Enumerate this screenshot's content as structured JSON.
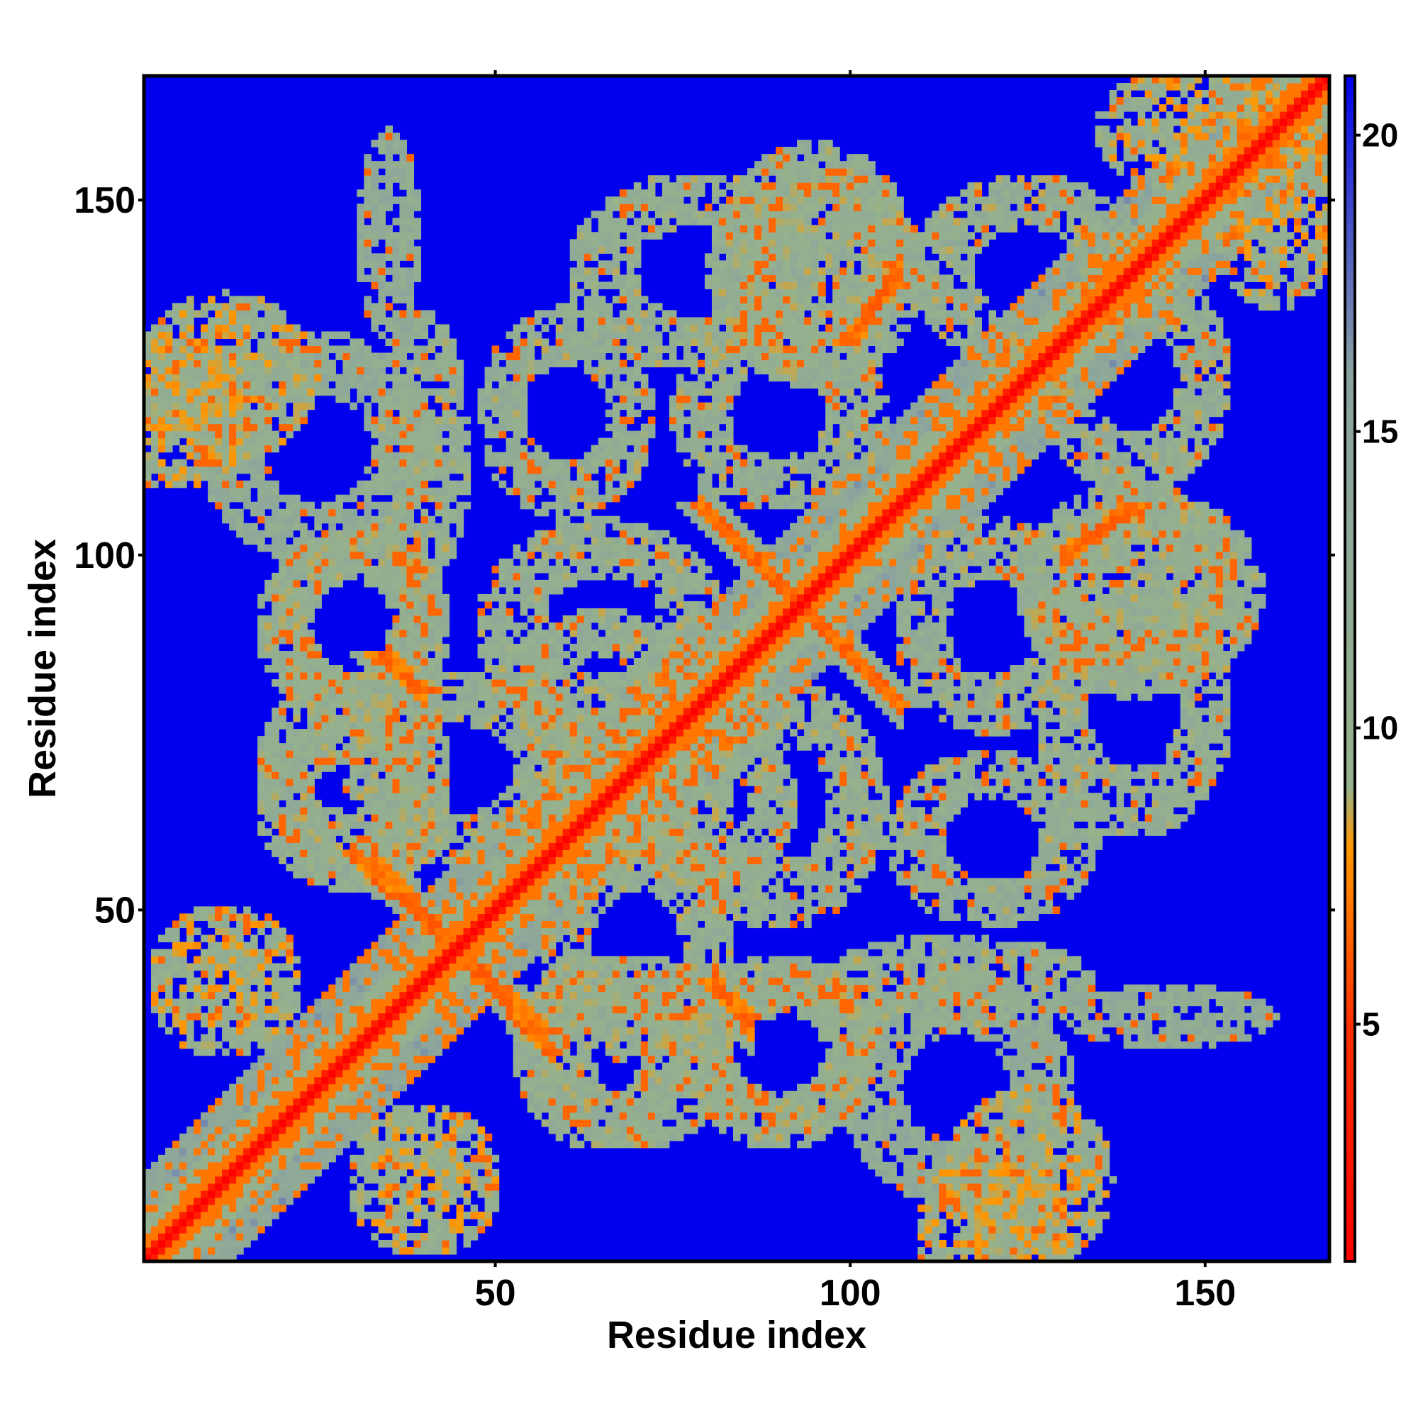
{
  "chart_data": {
    "type": "heatmap",
    "title": "",
    "xlabel": "Residue index",
    "ylabel": "Residue index",
    "n_residues": 167,
    "xlim": [
      1,
      167
    ],
    "ylim": [
      1,
      167
    ],
    "x_ticks": [
      50,
      100,
      150
    ],
    "y_ticks": [
      50,
      100,
      150
    ],
    "colorbar": {
      "ticks": [
        5,
        10,
        15,
        20
      ],
      "range": [
        1,
        21
      ],
      "colors": [
        {
          "value": 1,
          "color": "#ff0000"
        },
        {
          "value": 5,
          "color": "#ff3000"
        },
        {
          "value": 8,
          "color": "#ff9900"
        },
        {
          "value": 9,
          "color": "#96b28c"
        },
        {
          "value": 16,
          "color": "#8aa2a0"
        },
        {
          "value": 21,
          "color": "#0000ee"
        }
      ]
    },
    "background_value": 21,
    "diagonal": {
      "start": 1,
      "end": 167,
      "value": 1
    },
    "cross_contacts": [
      {
        "i_from": 79,
        "i_to": 107,
        "j_from": 107,
        "j_to": 79,
        "value": 6
      },
      {
        "i_from": 30,
        "i_to": 57,
        "j_from": 58,
        "j_to": 33,
        "value": 6
      },
      {
        "i_from": 33,
        "i_to": 40,
        "j_from": 86,
        "j_to": 81,
        "value": 6
      },
      {
        "i_from": 80,
        "i_to": 86,
        "j_from": 40,
        "j_to": 35,
        "value": 6
      },
      {
        "i_from": 131,
        "i_to": 141,
        "j_from": 101,
        "j_to": 107,
        "value": 6
      },
      {
        "i_from": 99,
        "i_to": 106,
        "j_from": 130,
        "j_to": 138,
        "value": 6
      }
    ],
    "contact_rings": [
      {
        "center": [
          30,
          90
        ],
        "radius": [
          9,
          10
        ],
        "value": 11
      },
      {
        "center": [
          45,
          70
        ],
        "radius": [
          12,
          10
        ],
        "value": 11
      },
      {
        "center": [
          65,
          80
        ],
        "radius": [
          9,
          9
        ],
        "value": 11
      },
      {
        "center": [
          68,
          65
        ],
        "radius": [
          8,
          8
        ],
        "value": 11
      },
      {
        "center": [
          90,
          65
        ],
        "radius": [
          11,
          13
        ],
        "value": 11
      },
      {
        "center": [
          120,
          90
        ],
        "radius": [
          10,
          11
        ],
        "value": 11
      },
      {
        "center": [
          25,
          115
        ],
        "radius": [
          12,
          12
        ],
        "value": 12
      },
      {
        "center": [
          78,
          140
        ],
        "radius": [
          13,
          10
        ],
        "value": 11
      },
      {
        "center": [
          95,
          140
        ],
        "radius": [
          11,
          12
        ],
        "value": 11
      },
      {
        "center": [
          140,
          125
        ],
        "radius": [
          10,
          12
        ],
        "value": 11
      },
      {
        "center": [
          65,
          30
        ],
        "radius": [
          9,
          10
        ],
        "value": 11
      },
      {
        "center": [
          90,
          30
        ],
        "radius": [
          10,
          10
        ],
        "value": 11
      },
      {
        "center": [
          30,
          70
        ],
        "radius": [
          10,
          10
        ],
        "value": 11
      },
      {
        "center": [
          120,
          60
        ],
        "radius": [
          11,
          9
        ],
        "value": 11
      }
    ],
    "contact_patches": [
      {
        "center": [
          5,
          120
        ],
        "radius": [
          10,
          10
        ],
        "value": 10
      },
      {
        "center": [
          40,
          12
        ],
        "radius": [
          10,
          10
        ],
        "value": 10
      },
      {
        "center": [
          125,
          12
        ],
        "radius": [
          11,
          12
        ],
        "value": 10
      },
      {
        "center": [
          150,
          160
        ],
        "radius": [
          14,
          9
        ],
        "value": 10
      },
      {
        "center": [
          35,
          145
        ],
        "radius": [
          4,
          14
        ],
        "value": 12
      },
      {
        "center": [
          145,
          95
        ],
        "radius": [
          12,
          12
        ],
        "value": 11
      },
      {
        "center": [
          115,
          40
        ],
        "radius": [
          18,
          6
        ],
        "value": 11
      }
    ]
  }
}
